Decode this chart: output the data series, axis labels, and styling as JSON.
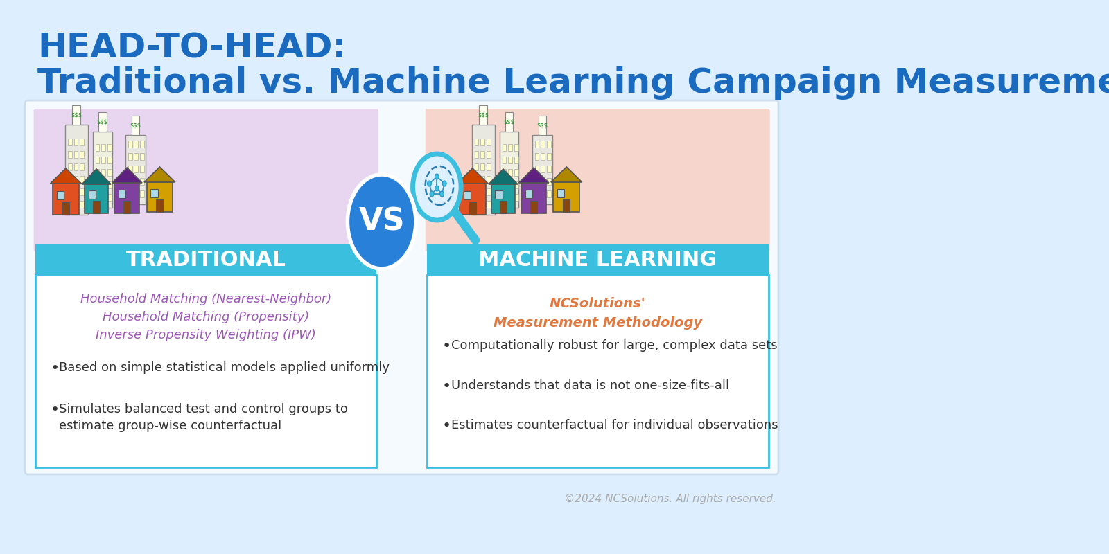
{
  "bg_color": "#ddeeff",
  "title_line1": "HEAD-TO-HEAD:",
  "title_line2": "Traditional vs. Machine Learning Campaign Measurement",
  "title_color": "#1a6abf",
  "main_bg": "#f0f8ff",
  "left_panel_bg": "#e8d5f0",
  "right_panel_bg": "#f5d5cc",
  "header_bg": "#3bbfdf",
  "header_text_color": "#ffffff",
  "left_title": "TRADITIONAL",
  "right_title": "MACHINE LEARNING",
  "left_subtitle_color": "#9b59b6",
  "right_subtitle_color": "#e07840",
  "left_subtitle_lines": [
    "Household Matching (Nearest-Neighbor)",
    "Household Matching (Propensity)",
    "Inverse Propensity Weighting (IPW)"
  ],
  "left_bullets": [
    "Based on simple statistical models applied uniformly",
    "Simulates balanced test and control groups to\nestimate group-wise counterfactual"
  ],
  "right_subtitle_lines": [
    "NCSolutions'",
    "Measurement Methodology"
  ],
  "right_bullets": [
    "Computationally robust for large, complex data sets",
    "Understands that data is not one-size-fits-all",
    "Estimates counterfactual for individual observations"
  ],
  "vs_circle_color": "#2980d9",
  "vs_text_color": "#ffffff",
  "border_color": "#3bbfdf",
  "footer_text": "©2024 NCSolutions. All rights reserved.",
  "footer_color": "#aaaaaa"
}
